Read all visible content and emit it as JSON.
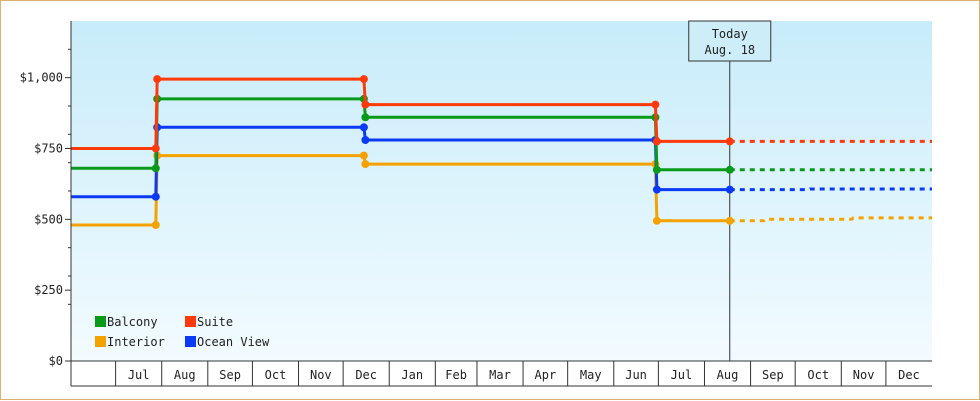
{
  "chart_data": {
    "type": "line",
    "step": true,
    "title": "",
    "xlabel": "",
    "ylabel": "",
    "ylim": [
      0,
      1200
    ],
    "yticks": [
      0,
      250,
      500,
      750,
      1000
    ],
    "ytick_labels": [
      "$0",
      "$250",
      "$500",
      "$750",
      "$1,000"
    ],
    "xlim": [
      "2016-06-01",
      "2018-01-01"
    ],
    "month_ticks": [
      {
        "label": "Jul",
        "date": "2016-07-01"
      },
      {
        "label": "Aug",
        "date": "2016-08-01"
      },
      {
        "label": "Sep",
        "date": "2016-09-01"
      },
      {
        "label": "Oct",
        "date": "2016-10-01"
      },
      {
        "label": "Nov",
        "date": "2016-11-01"
      },
      {
        "label": "Dec",
        "date": "2016-12-01"
      },
      {
        "label": "Jan",
        "date": "2017-01-01"
      },
      {
        "label": "Feb",
        "date": "2017-02-01"
      },
      {
        "label": "Mar",
        "date": "2017-03-01"
      },
      {
        "label": "Apr",
        "date": "2017-04-01"
      },
      {
        "label": "May",
        "date": "2017-05-01"
      },
      {
        "label": "Jun",
        "date": "2017-06-01"
      },
      {
        "label": "Jul",
        "date": "2017-07-01"
      },
      {
        "label": "Aug",
        "date": "2017-08-01"
      },
      {
        "label": "Sep",
        "date": "2017-09-01"
      },
      {
        "label": "Oct",
        "date": "2017-10-01"
      },
      {
        "label": "Nov",
        "date": "2017-11-01"
      },
      {
        "label": "Dec",
        "date": "2017-12-01"
      }
    ],
    "today": {
      "date": "2017-08-18",
      "label": "Today",
      "sublabel": "Aug. 18"
    },
    "legend_position": "bottom-left",
    "grid": false,
    "background": {
      "top": "#c8ecfa",
      "bottom": "#f2fbff"
    },
    "series": [
      {
        "name": "Balcony",
        "color": "#0a9a1a",
        "points": [
          [
            "2016-06-01",
            680
          ],
          [
            "2016-07-28",
            680
          ],
          [
            "2016-07-29",
            925
          ],
          [
            "2016-12-15",
            925
          ],
          [
            "2016-12-16",
            860
          ],
          [
            "2017-06-29",
            860
          ],
          [
            "2017-06-30",
            675
          ],
          [
            "2017-08-18",
            675
          ]
        ],
        "projection": [
          [
            "2017-08-18",
            675
          ],
          [
            "2018-01-01",
            675
          ]
        ]
      },
      {
        "name": "Suite",
        "color": "#ff3a0a",
        "points": [
          [
            "2016-06-01",
            750
          ],
          [
            "2016-07-28",
            750
          ],
          [
            "2016-07-29",
            995
          ],
          [
            "2016-12-15",
            995
          ],
          [
            "2016-12-16",
            905
          ],
          [
            "2017-06-29",
            905
          ],
          [
            "2017-06-30",
            775
          ],
          [
            "2017-08-18",
            775
          ]
        ],
        "projection": [
          [
            "2017-08-18",
            775
          ],
          [
            "2018-01-01",
            775
          ]
        ]
      },
      {
        "name": "Interior",
        "color": "#f5a200",
        "points": [
          [
            "2016-06-01",
            480
          ],
          [
            "2016-07-28",
            480
          ],
          [
            "2016-07-29",
            725
          ],
          [
            "2016-12-15",
            725
          ],
          [
            "2016-12-16",
            695
          ],
          [
            "2017-06-29",
            695
          ],
          [
            "2017-06-30",
            495
          ],
          [
            "2017-08-18",
            495
          ]
        ],
        "projection": [
          [
            "2017-08-18",
            495
          ],
          [
            "2017-09-10",
            495
          ],
          [
            "2017-09-11",
            500
          ],
          [
            "2017-11-08",
            500
          ],
          [
            "2017-11-09",
            505
          ],
          [
            "2018-01-01",
            505
          ]
        ]
      },
      {
        "name": "Ocean View",
        "color": "#0a3af5",
        "points": [
          [
            "2016-06-01",
            580
          ],
          [
            "2016-07-28",
            580
          ],
          [
            "2016-07-29",
            825
          ],
          [
            "2016-12-15",
            825
          ],
          [
            "2016-12-16",
            780
          ],
          [
            "2017-06-29",
            780
          ],
          [
            "2017-06-30",
            605
          ],
          [
            "2017-08-18",
            605
          ]
        ],
        "projection": [
          [
            "2017-08-18",
            605
          ],
          [
            "2017-10-10",
            605
          ],
          [
            "2017-10-11",
            607
          ],
          [
            "2018-01-01",
            607
          ]
        ]
      }
    ],
    "legend_order": [
      "Balcony",
      "Suite",
      "Interior",
      "Ocean View"
    ]
  }
}
